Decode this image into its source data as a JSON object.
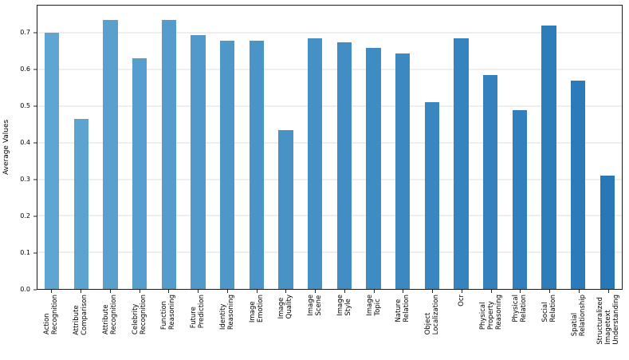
{
  "chart_data": {
    "type": "bar",
    "title": "",
    "xlabel": "",
    "ylabel": "Average Values",
    "ylim": [
      0,
      0.775
    ],
    "yticks": [
      0.0,
      0.1,
      0.2,
      0.3,
      0.4,
      0.5,
      0.6,
      0.7
    ],
    "grid": true,
    "legend": "none",
    "categories": [
      "Action\nRecognition",
      "Attribute\nComparison",
      "Attribute\nRecognition",
      "Celebrity\nRecognition",
      "Function\nReasoning",
      "Future\nPrediction",
      "Identity\nReasoning",
      "Image\nEmotion",
      "Image\nQuality",
      "Image\nScene",
      "Image\nStyle",
      "Image\nTopic",
      "Nature\nRelation",
      "Object\nLocalization",
      "Ocr",
      "Physical\nProperty\nReasoning",
      "Physical\nRelation",
      "Social\nRelation",
      "Spatial\nRelationship",
      "Structuralized\nImagetext\nUnderstanding"
    ],
    "values": [
      0.7,
      0.465,
      0.735,
      0.63,
      0.735,
      0.695,
      0.68,
      0.68,
      0.435,
      0.685,
      0.675,
      0.66,
      0.645,
      0.51,
      0.685,
      0.585,
      0.49,
      0.72,
      0.57,
      0.31
    ],
    "bar_color_start": "#5fa5d1",
    "bar_color_end": "#2878b8",
    "gridline_color": "#dcdcdc",
    "axis_color": "#1a1a1a"
  }
}
